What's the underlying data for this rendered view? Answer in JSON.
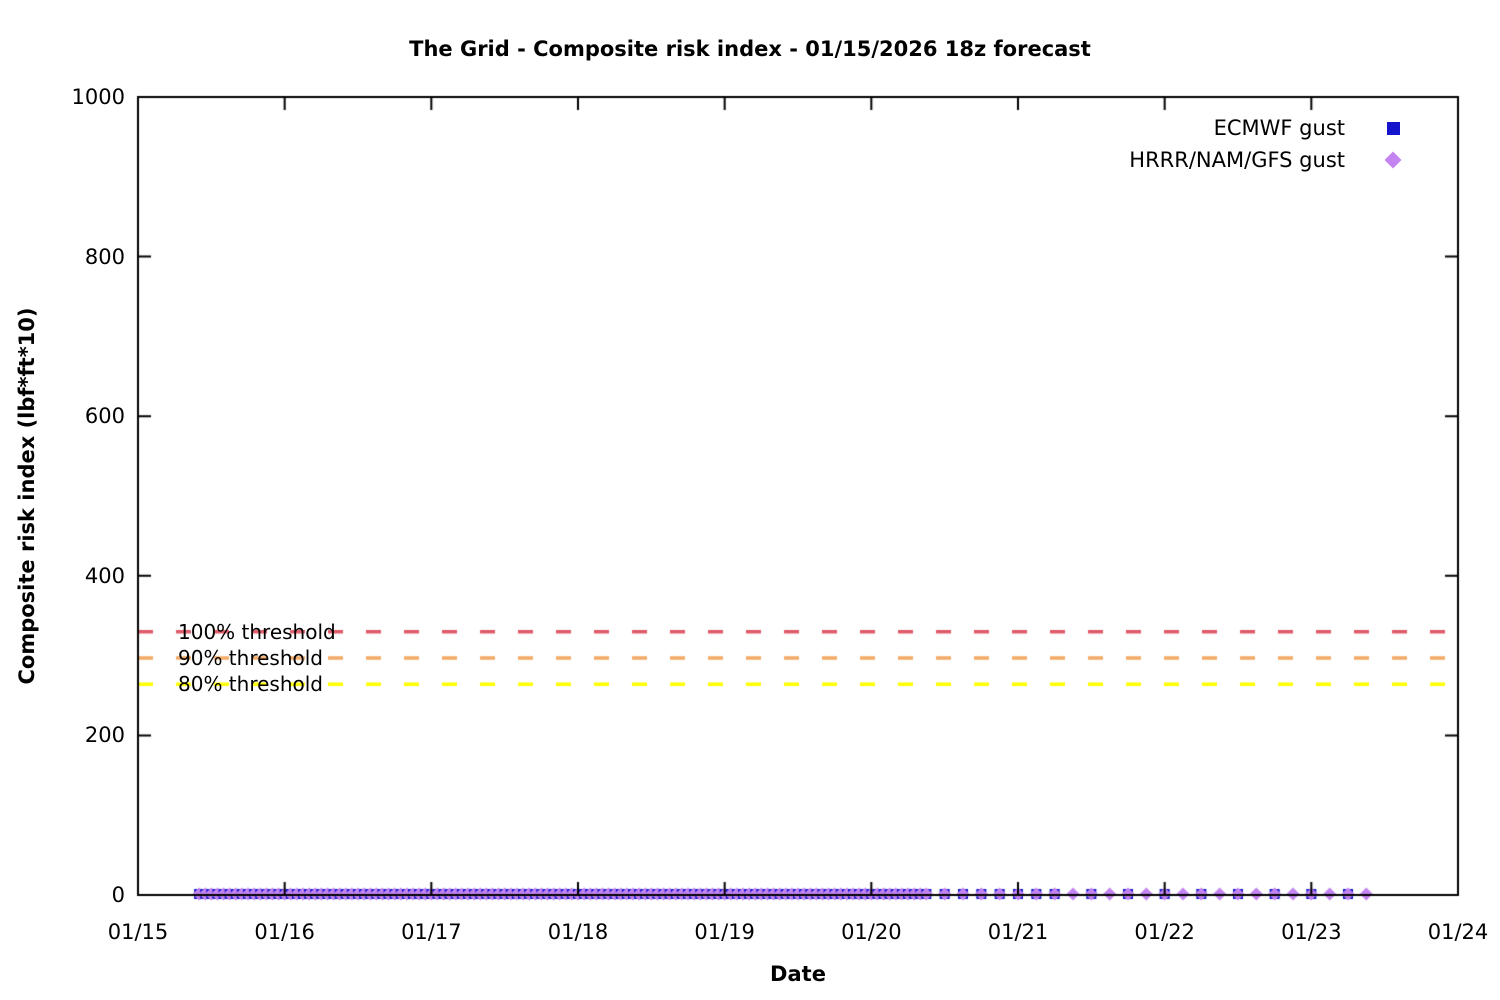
{
  "chart_data": {
    "type": "scatter",
    "title": "The Grid - Composite risk index - 01/15/2026 18z forecast",
    "xlabel": "Date",
    "ylabel": "Composite risk index (lbf*ft*10)",
    "x_tick_labels": [
      "01/15",
      "01/16",
      "01/17",
      "01/18",
      "01/19",
      "01/20",
      "01/21",
      "01/22",
      "01/23",
      "01/24"
    ],
    "y_tick_values": [
      0,
      200,
      400,
      600,
      800,
      1000
    ],
    "ylim": [
      0,
      1000
    ],
    "x_span_days": 9,
    "grid": false,
    "legend_position": "top-right-inside",
    "background_color": "#ffffff",
    "axis_color": "#000000",
    "series": [
      {
        "name": "ECMWF gust",
        "marker": "square",
        "color": "#1414cc",
        "point_value": 0,
        "point_segments_days": [
          {
            "start": 0.4167,
            "end": 5.4167,
            "step": 0.041667
          },
          {
            "start": 5.5,
            "end": 6.25,
            "step": 0.125
          },
          {
            "start": 6.5,
            "end": 8.25,
            "step": 0.25
          }
        ]
      },
      {
        "name": "HRRR/NAM/GFS gust",
        "marker": "diamond",
        "color": "#c383f0",
        "point_value": 0,
        "point_segments_days": [
          {
            "start": 0.4167,
            "end": 5.4167,
            "step": 0.041667
          },
          {
            "start": 5.5,
            "end": 8.4167,
            "step": 0.125
          }
        ]
      }
    ],
    "thresholds": [
      {
        "label": "100% threshold",
        "value": 330,
        "color": "#df5a68"
      },
      {
        "label": "90% threshold",
        "value": 297,
        "color": "#f4aa66"
      },
      {
        "label": "80% threshold",
        "value": 264,
        "color": "#ffff00"
      }
    ]
  }
}
